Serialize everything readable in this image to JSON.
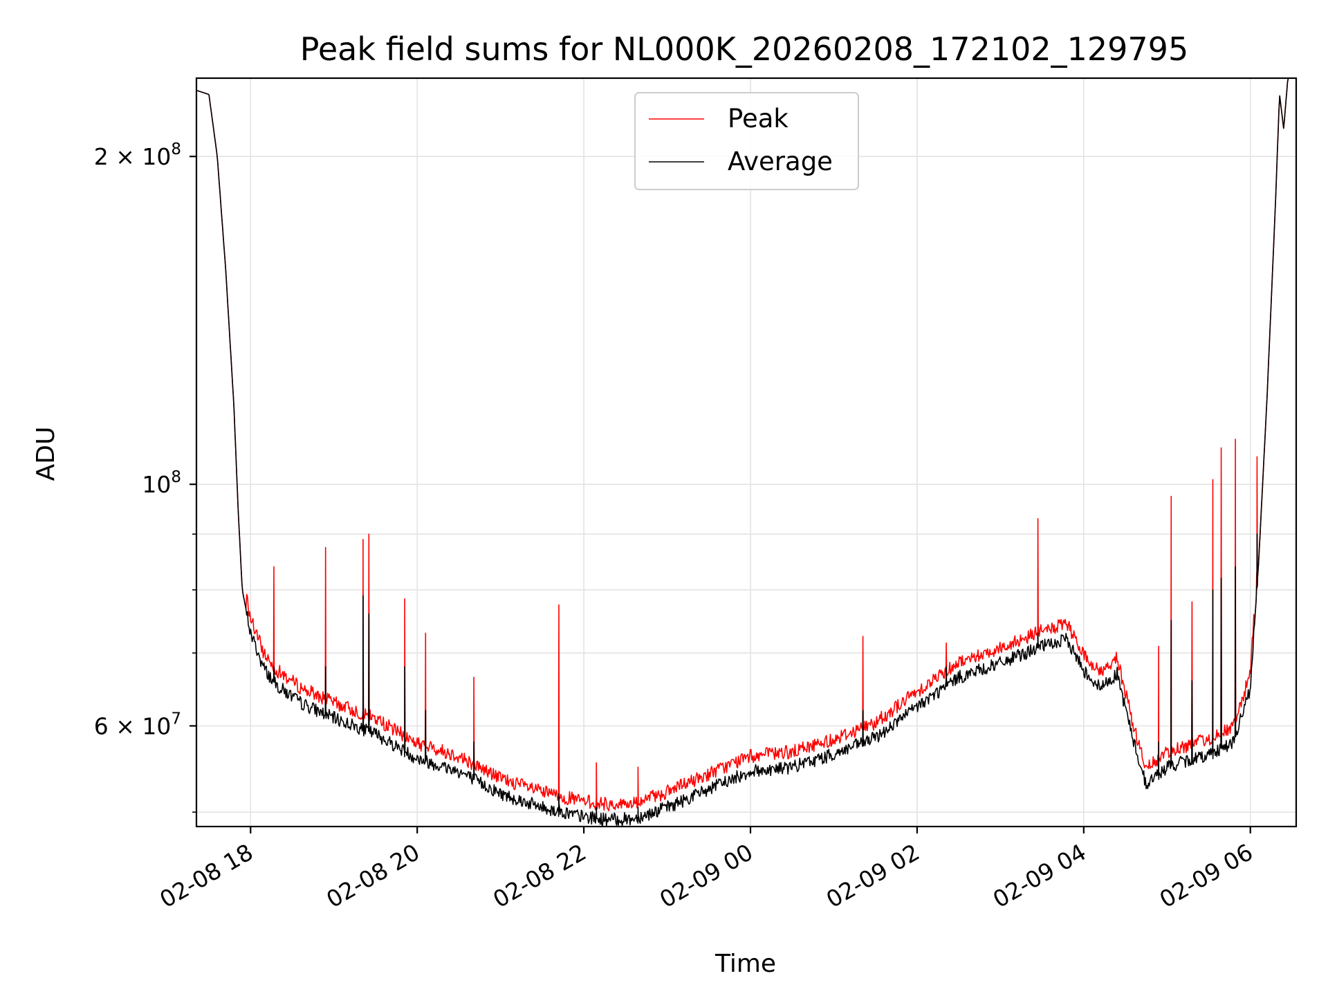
{
  "chart_data": {
    "type": "line",
    "title": "Peak field sums for NL000K_20260208_172102_129795",
    "xlabel": "Time",
    "ylabel": "ADU",
    "yscale": "log",
    "grid": true,
    "legend_position": "upper-center",
    "x_unit": "hours after 2026-02-08 00:00",
    "xlim": [
      17.35,
      30.55
    ],
    "ylim": [
      48500000,
      236000000
    ],
    "x_ticks": [
      {
        "label": "02-08 18",
        "value": 18
      },
      {
        "label": "02-08 20",
        "value": 20
      },
      {
        "label": "02-08 22",
        "value": 22
      },
      {
        "label": "02-09 00",
        "value": 24
      },
      {
        "label": "02-09 02",
        "value": 26
      },
      {
        "label": "02-09 04",
        "value": 28
      },
      {
        "label": "02-09 06",
        "value": 30
      }
    ],
    "y_ticks": [
      {
        "label": "2 × 10^8",
        "mant": "2 × 10",
        "exp": "8",
        "value": 200000000
      },
      {
        "label": "10^8",
        "mant": "10",
        "exp": "8",
        "value": 100000000
      },
      {
        "label": "6 × 10^7",
        "mant": "6 × 10",
        "exp": "7",
        "value": 60000000
      }
    ],
    "y_minor_ticks": [
      50000000,
      70000000,
      80000000,
      90000000
    ],
    "series": [
      {
        "name": "Peak",
        "color": "#ff0000",
        "role": "peak"
      },
      {
        "name": "Average",
        "color": "#000000",
        "role": "average"
      }
    ],
    "baseline": {
      "description": "average level (ADU) at time (hours)",
      "points": [
        [
          17.35,
          230000000
        ],
        [
          17.5,
          228000000
        ],
        [
          17.6,
          200000000
        ],
        [
          17.7,
          158000000
        ],
        [
          17.8,
          118000000
        ],
        [
          17.85,
          95000000
        ],
        [
          17.9,
          80000000
        ],
        [
          18.0,
          73000000
        ],
        [
          18.15,
          68000000
        ],
        [
          18.3,
          65500000
        ],
        [
          18.6,
          63000000
        ],
        [
          19.0,
          61000000
        ],
        [
          19.5,
          59000000
        ],
        [
          20.0,
          56000000
        ],
        [
          20.5,
          54500000
        ],
        [
          21.0,
          52000000
        ],
        [
          21.5,
          50500000
        ],
        [
          22.0,
          49500000
        ],
        [
          22.3,
          49200000
        ],
        [
          22.6,
          49300000
        ],
        [
          23.0,
          50500000
        ],
        [
          23.5,
          52500000
        ],
        [
          24.0,
          54500000
        ],
        [
          24.5,
          55000000
        ],
        [
          25.0,
          56500000
        ],
        [
          25.5,
          58500000
        ],
        [
          26.0,
          62500000
        ],
        [
          26.5,
          66500000
        ],
        [
          27.0,
          68500000
        ],
        [
          27.5,
          71000000
        ],
        [
          27.8,
          72000000
        ],
        [
          28.0,
          67500000
        ],
        [
          28.2,
          65000000
        ],
        [
          28.4,
          67000000
        ],
        [
          28.6,
          58000000
        ],
        [
          28.75,
          53000000
        ],
        [
          29.0,
          55000000
        ],
        [
          29.5,
          56500000
        ],
        [
          29.8,
          58000000
        ],
        [
          30.0,
          65000000
        ],
        [
          30.1,
          85000000
        ],
        [
          30.2,
          120000000
        ],
        [
          30.3,
          180000000
        ],
        [
          30.35,
          228000000
        ],
        [
          30.4,
          212000000
        ],
        [
          30.45,
          236000000
        ]
      ]
    },
    "spikes": [
      {
        "t": 18.28,
        "peak": 84000000,
        "avg": 68000000
      },
      {
        "t": 18.9,
        "peak": 87500000,
        "avg": 68000000
      },
      {
        "t": 19.35,
        "peak": 89000000,
        "avg": 79000000
      },
      {
        "t": 19.42,
        "peak": 90000000,
        "avg": 76000000
      },
      {
        "t": 19.85,
        "peak": 78500000,
        "avg": 68000000
      },
      {
        "t": 20.1,
        "peak": 73000000,
        "avg": 62000000
      },
      {
        "t": 20.68,
        "peak": 66500000,
        "avg": 58000000
      },
      {
        "t": 21.7,
        "peak": 77500000,
        "avg": 52000000
      },
      {
        "t": 22.15,
        "peak": 55500000,
        "avg": 50500000
      },
      {
        "t": 22.65,
        "peak": 55000000,
        "avg": 50500000
      },
      {
        "t": 25.35,
        "peak": 72500000,
        "avg": 62000000
      },
      {
        "t": 26.35,
        "peak": 71500000,
        "avg": 68000000
      },
      {
        "t": 27.45,
        "peak": 93000000,
        "avg": 73000000
      },
      {
        "t": 28.9,
        "peak": 71000000,
        "avg": 58000000
      },
      {
        "t": 29.05,
        "peak": 97500000,
        "avg": 75000000
      },
      {
        "t": 29.3,
        "peak": 78000000,
        "avg": 66000000
      },
      {
        "t": 29.55,
        "peak": 101000000,
        "avg": 80000000
      },
      {
        "t": 29.65,
        "peak": 108000000,
        "avg": 82000000
      },
      {
        "t": 29.82,
        "peak": 110000000,
        "avg": 84000000
      },
      {
        "t": 30.08,
        "peak": 106000000,
        "avg": 90000000
      }
    ]
  }
}
